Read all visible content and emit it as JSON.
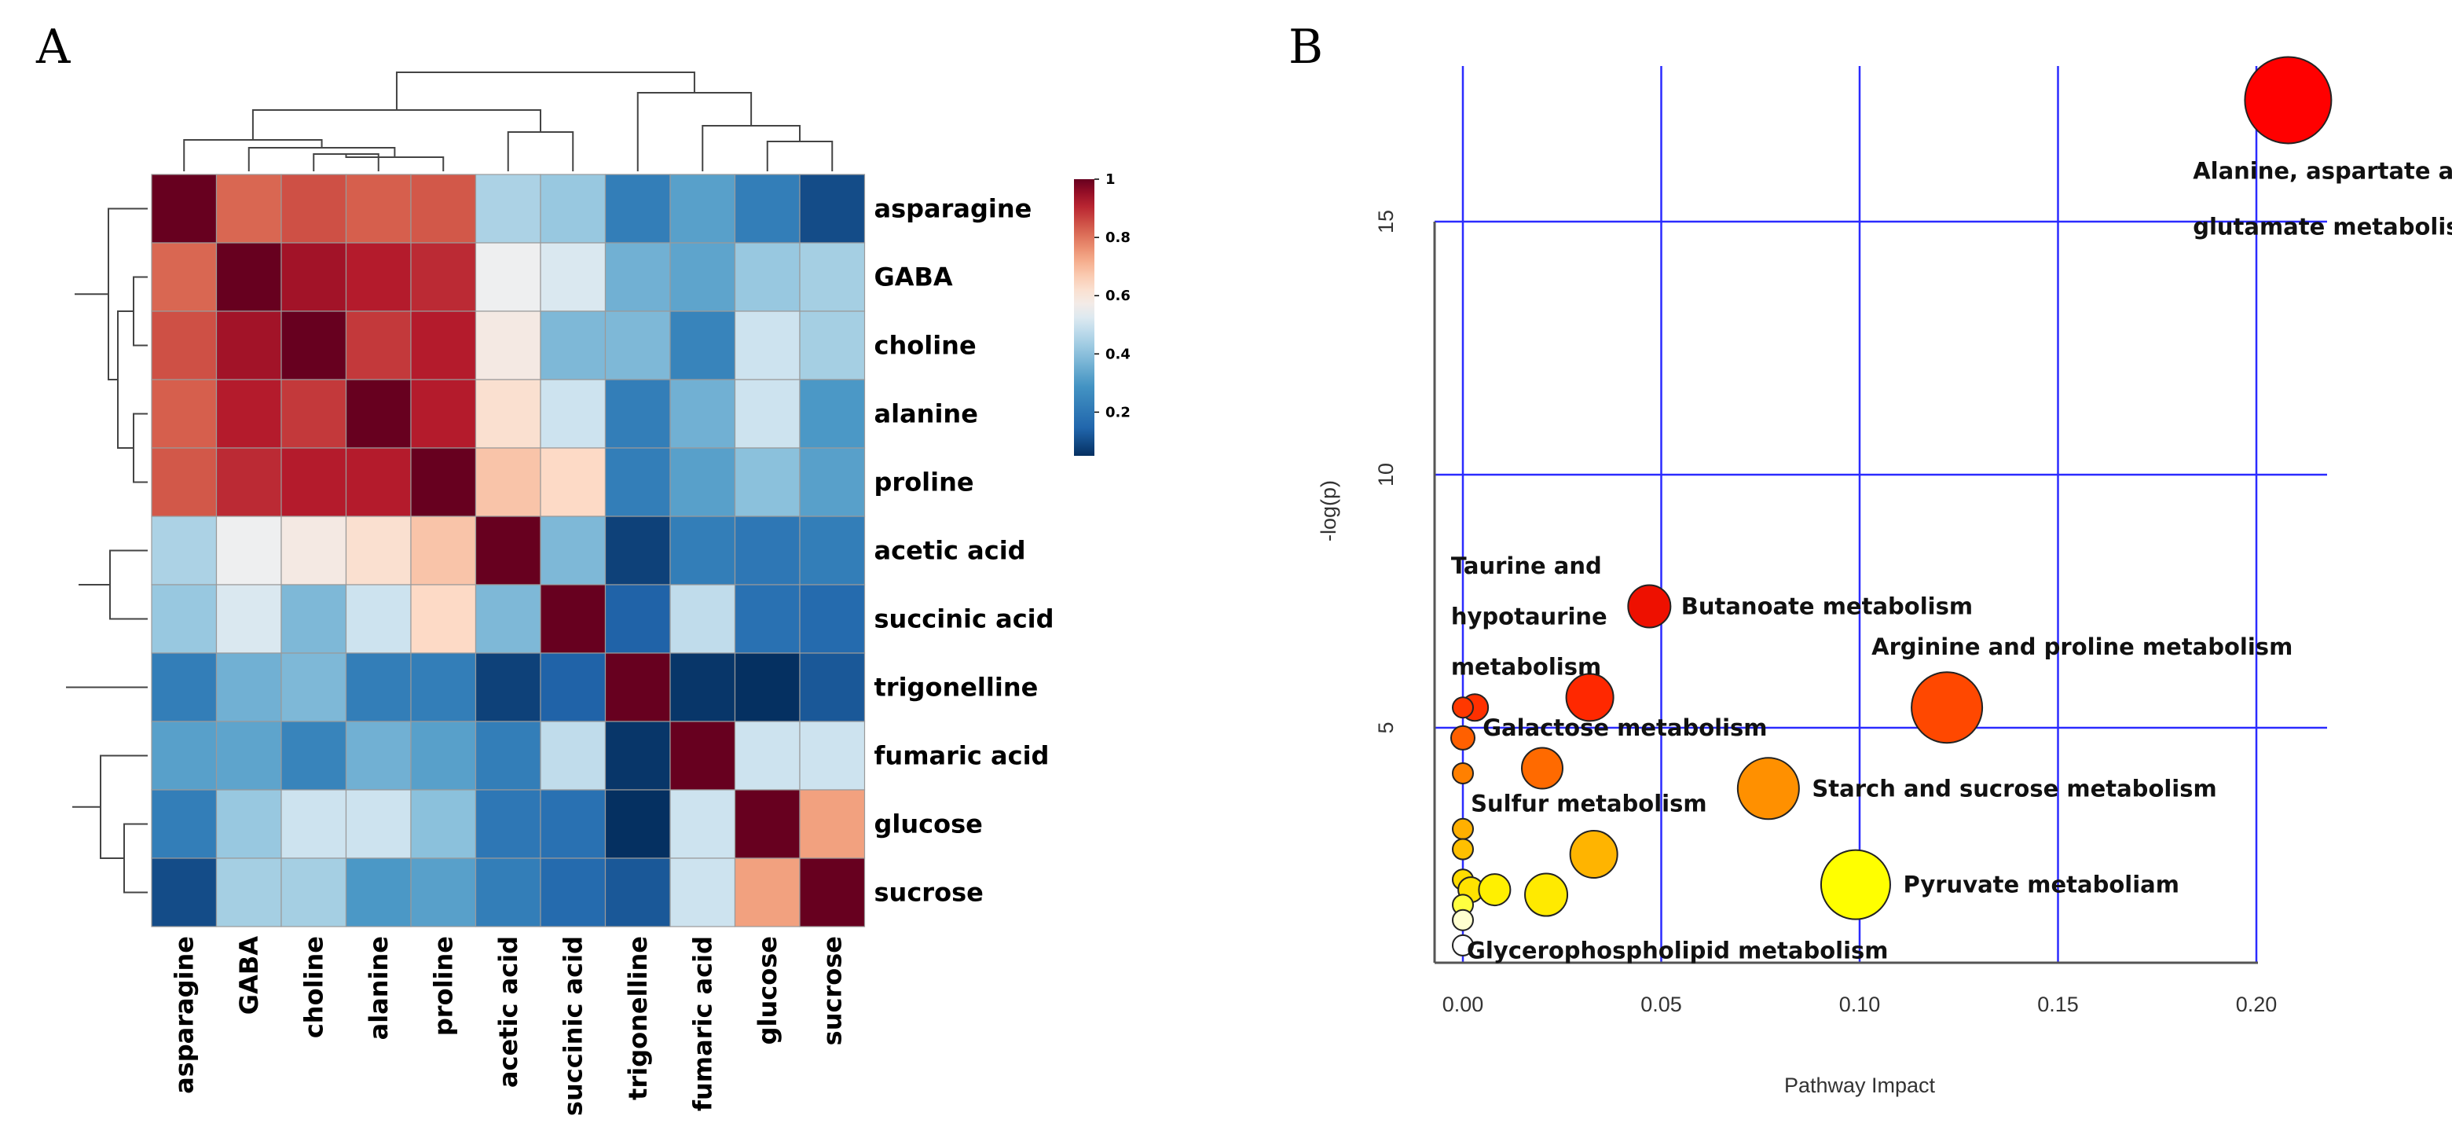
{
  "panel_a_letter": "A",
  "panel_b_letter": "B",
  "chart_data": [
    {
      "type": "heatmap",
      "title": "",
      "labels": [
        "asparagine",
        "GABA",
        "choline",
        "alanine",
        "proline",
        "acetic acid",
        "succinic acid",
        "trigonelline",
        "fumaric acid",
        "glucose",
        "sucrose"
      ],
      "matrix": [
        [
          1.0,
          0.82,
          0.85,
          0.83,
          0.84,
          0.45,
          0.42,
          0.22,
          0.32,
          0.22,
          0.1
        ],
        [
          0.82,
          1.0,
          0.94,
          0.92,
          0.9,
          0.55,
          0.52,
          0.36,
          0.33,
          0.42,
          0.44
        ],
        [
          0.85,
          0.94,
          1.0,
          0.88,
          0.92,
          0.58,
          0.38,
          0.38,
          0.24,
          0.5,
          0.44
        ],
        [
          0.83,
          0.92,
          0.88,
          1.0,
          0.92,
          0.62,
          0.5,
          0.22,
          0.36,
          0.5,
          0.3
        ],
        [
          0.84,
          0.9,
          0.92,
          0.92,
          1.0,
          0.68,
          0.64,
          0.22,
          0.32,
          0.4,
          0.32
        ],
        [
          0.45,
          0.55,
          0.58,
          0.62,
          0.68,
          1.0,
          0.38,
          0.08,
          0.22,
          0.2,
          0.22
        ],
        [
          0.42,
          0.52,
          0.38,
          0.5,
          0.64,
          0.38,
          1.0,
          0.14,
          0.48,
          0.18,
          0.16
        ],
        [
          0.22,
          0.36,
          0.38,
          0.22,
          0.22,
          0.08,
          0.14,
          1.0,
          0.06,
          0.02,
          0.12
        ],
        [
          0.32,
          0.33,
          0.24,
          0.36,
          0.32,
          0.22,
          0.48,
          0.06,
          1.0,
          0.5,
          0.5
        ],
        [
          0.22,
          0.42,
          0.5,
          0.5,
          0.4,
          0.2,
          0.18,
          0.02,
          0.5,
          1.0,
          0.74
        ],
        [
          0.1,
          0.44,
          0.44,
          0.3,
          0.32,
          0.22,
          0.16,
          0.12,
          0.5,
          0.74,
          1.0
        ]
      ],
      "colorbar": {
        "min": 0.05,
        "max": 1.0,
        "ticks": [
          "1",
          "0.8",
          "0.6",
          "0.4",
          "0.2"
        ],
        "tick_values": [
          1.0,
          0.8,
          0.6,
          0.4,
          0.2
        ]
      },
      "legend_position": "right"
    },
    {
      "type": "scatter",
      "title": "",
      "xlabel": "Pathway Impact",
      "ylabel": "-log(p)",
      "xlim": [
        -0.0075,
        0.218
      ],
      "ylim": [
        -0.4,
        19.3
      ],
      "x_ticks": [
        0.0,
        0.05,
        0.1,
        0.15,
        0.2
      ],
      "x_tick_labels": [
        "0.00",
        "0.05",
        "0.10",
        "0.15",
        "0.20"
      ],
      "y_ticks": [
        5,
        10,
        15
      ],
      "y_tick_labels": [
        "5",
        "10",
        "15"
      ],
      "grid": true,
      "points": [
        {
          "x": 0.208,
          "y": 17.4,
          "size": 55,
          "color": "#ff0000",
          "label": "Alanine, aspartate and glutamate metabolism"
        },
        {
          "x": 0.047,
          "y": 7.4,
          "size": 27,
          "color": "#ee1000",
          "label": "Butanoate metabolism"
        },
        {
          "x": 0.122,
          "y": 5.4,
          "size": 45,
          "color": "#ff4800",
          "label": "Arginine and proline metabolism"
        },
        {
          "x": 0.032,
          "y": 5.6,
          "size": 30,
          "color": "#ff2800",
          "label": ""
        },
        {
          "x": 0.003,
          "y": 5.4,
          "size": 17,
          "color": "#ff3000",
          "label": ""
        },
        {
          "x": 0.0,
          "y": 5.4,
          "size": 13,
          "color": "#ff3800",
          "label": ""
        },
        {
          "x": 0.0,
          "y": 4.8,
          "size": 15,
          "color": "#ff6000",
          "label": ""
        },
        {
          "x": 0.02,
          "y": 4.2,
          "size": 26,
          "color": "#ff6a00",
          "label": ""
        },
        {
          "x": 0.077,
          "y": 3.8,
          "size": 39,
          "color": "#ff9000",
          "label": "Starch and sucrose metabolism"
        },
        {
          "x": 0.0,
          "y": 4.1,
          "size": 13,
          "color": "#ff8000",
          "label": ""
        },
        {
          "x": 0.0,
          "y": 3.0,
          "size": 13,
          "color": "#ffb000",
          "label": ""
        },
        {
          "x": 0.0,
          "y": 2.6,
          "size": 13,
          "color": "#ffc000",
          "label": ""
        },
        {
          "x": 0.033,
          "y": 2.5,
          "size": 30,
          "color": "#ffb400",
          "label": ""
        },
        {
          "x": 0.0,
          "y": 2.0,
          "size": 13,
          "color": "#ffdc00",
          "label": ""
        },
        {
          "x": 0.002,
          "y": 1.8,
          "size": 16,
          "color": "#ffe200",
          "label": ""
        },
        {
          "x": 0.008,
          "y": 1.8,
          "size": 20,
          "color": "#fff000",
          "label": ""
        },
        {
          "x": 0.021,
          "y": 1.7,
          "size": 27,
          "color": "#ffea00",
          "label": ""
        },
        {
          "x": 0.099,
          "y": 1.9,
          "size": 44,
          "color": "#ffff00",
          "label": "Pyruvate metaboliam"
        },
        {
          "x": 0.0,
          "y": 1.5,
          "size": 13,
          "color": "#ffff40",
          "label": ""
        },
        {
          "x": 0.0,
          "y": 1.2,
          "size": 13,
          "color": "#ffffd0",
          "label": ""
        },
        {
          "x": 0.0,
          "y": 0.7,
          "size": 13,
          "color": "#ffffff",
          "label": ""
        }
      ],
      "annotations": [
        {
          "text": "Alanine, aspartate and",
          "x": 0.184,
          "y": 16.0
        },
        {
          "text": "glutamate metabolism",
          "x": 0.184,
          "y": 14.9
        },
        {
          "text": "Taurine and",
          "x": -0.003,
          "y": 8.2
        },
        {
          "text": "hypotaurine",
          "x": -0.003,
          "y": 7.2
        },
        {
          "text": "metabolism",
          "x": -0.003,
          "y": 6.2
        },
        {
          "text": "Butanoate metabolism",
          "x": 0.055,
          "y": 7.4
        },
        {
          "text": "Arginine and proline metabolism",
          "x": 0.103,
          "y": 6.6
        },
        {
          "text": "Galactose metabolism",
          "x": 0.005,
          "y": 5.0
        },
        {
          "text": "Starch and sucrose metabolism",
          "x": 0.088,
          "y": 3.8
        },
        {
          "text": "Sulfur metabolism",
          "x": 0.002,
          "y": 3.5
        },
        {
          "text": "Pyruvate metaboliam",
          "x": 0.111,
          "y": 1.9
        },
        {
          "text": "Glycerophospholipid metabolism",
          "x": 0.001,
          "y": 0.6
        }
      ]
    }
  ]
}
